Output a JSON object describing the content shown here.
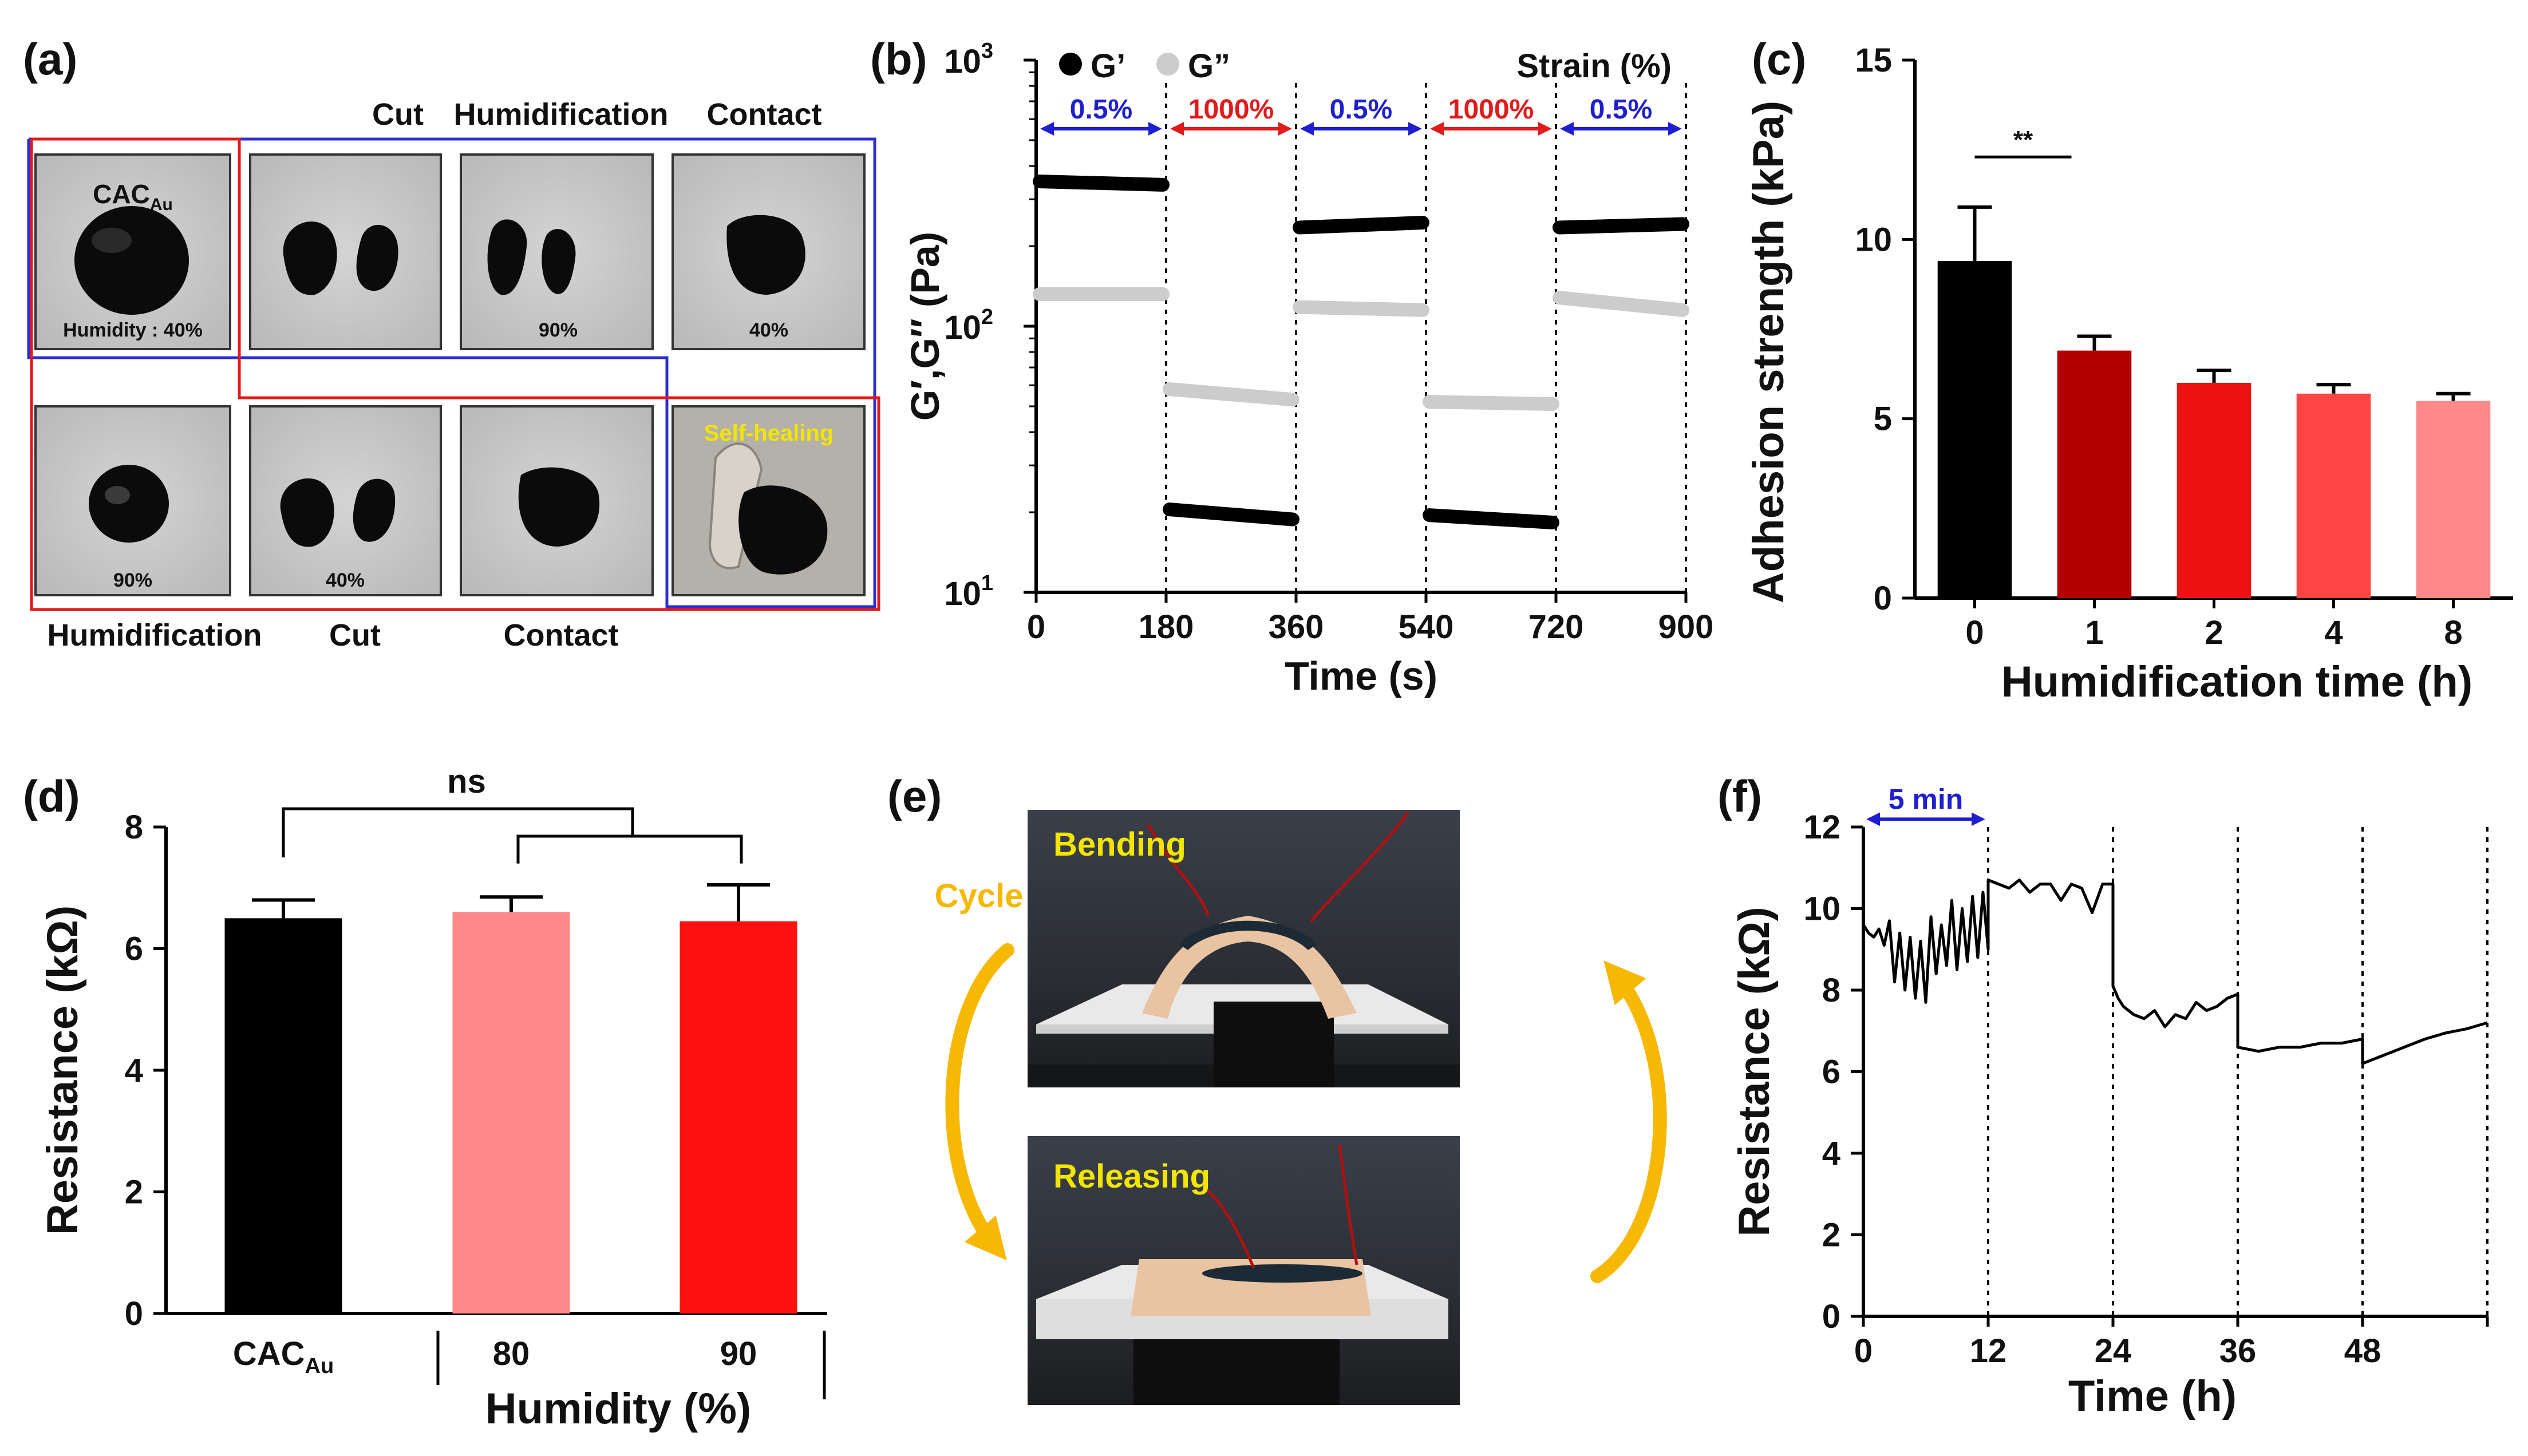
{
  "figure": {
    "panel_a": {
      "label": "(a)",
      "top_captions": [
        "Cut",
        "Humidification",
        "Contact"
      ],
      "bottom_captions": [
        "Humidification",
        "Cut",
        "Contact"
      ],
      "photos_top": [
        {
          "title": "CAC",
          "title_sub": "Au",
          "note": "Humidity : 40%"
        },
        {
          "note": ""
        },
        {
          "note": "90%"
        },
        {
          "note": "40%"
        }
      ],
      "photos_bottom": [
        {
          "note": "90%"
        },
        {
          "note": "40%"
        },
        {
          "note": ""
        },
        {
          "note": "Self-healing"
        }
      ],
      "colors": {
        "blue_box": "#2d2dd0",
        "red_box": "#e11b1b",
        "highlight": "#f2e600"
      }
    },
    "panel_e": {
      "label": "(e)",
      "cycle_label": "Cycle",
      "bending_label": "Bending",
      "releasing_label": "Releasing",
      "colors": {
        "arrow": "#f6b800",
        "text": "#f2e600"
      }
    }
  },
  "chart_data": [
    {
      "panel": "(b)",
      "type": "line",
      "xlabel": "Time (s)",
      "ylabel": "G′,G′′ (Pa)",
      "yscale": "log",
      "xlim": [
        0,
        900
      ],
      "ylim": [
        10,
        1000
      ],
      "xticks": [
        0,
        180,
        360,
        540,
        720,
        900
      ],
      "yticks": [
        10,
        100,
        1000
      ],
      "ytick_labels": [
        "10",
        "10",
        "10"
      ],
      "ytick_exps": [
        "1",
        "2",
        "3"
      ],
      "legend": [
        "G’",
        "G”"
      ],
      "legend_colors": [
        "#000000",
        "#cccccc"
      ],
      "strain_header": "Strain (%)",
      "strain_steps": [
        {
          "label": "0.5%",
          "start": 0,
          "end": 180,
          "color": "#1f1fd0"
        },
        {
          "label": "1000%",
          "start": 180,
          "end": 360,
          "color": "#e11b1b"
        },
        {
          "label": "0.5%",
          "start": 360,
          "end": 540,
          "color": "#1f1fd0"
        },
        {
          "label": "1000%",
          "start": 540,
          "end": 720,
          "color": "#e11b1b"
        },
        {
          "label": "0.5%",
          "start": 720,
          "end": 900,
          "color": "#1f1fd0"
        }
      ],
      "series": [
        {
          "name": "G’",
          "color": "#000000",
          "segments": [
            [
              350,
              340
            ],
            [
              20.5,
              18.8
            ],
            [
              235,
              245
            ],
            [
              19.5,
              18.3
            ],
            [
              235,
              242
            ]
          ]
        },
        {
          "name": "G”",
          "color": "#cccccc",
          "segments": [
            [
              132,
              132
            ],
            [
              58,
              53
            ],
            [
              118,
              115
            ],
            [
              52,
              51
            ],
            [
              128,
              115
            ]
          ]
        }
      ]
    },
    {
      "panel": "(c)",
      "type": "bar",
      "xlabel": "Humidification time (h)",
      "ylabel": "Adhesion strength (kPa)",
      "categories": [
        "0",
        "1",
        "2",
        "4",
        "8"
      ],
      "values": [
        9.4,
        6.9,
        6.0,
        5.7,
        5.5
      ],
      "errors": [
        1.5,
        0.4,
        0.35,
        0.25,
        0.2
      ],
      "colors": [
        "#000000",
        "#b30000",
        "#ee1111",
        "#ff4444",
        "#ff8888"
      ],
      "ylim": [
        0,
        15
      ],
      "yticks": [
        0,
        5,
        10,
        15
      ],
      "significance": "**"
    },
    {
      "panel": "(d)",
      "type": "bar",
      "xlabel": "Humidity (%)",
      "ylabel": "Resistance (kΩ)",
      "categories": [
        "CAC",
        "80",
        "90"
      ],
      "category_sub": [
        "Au",
        "",
        ""
      ],
      "values": [
        6.5,
        6.6,
        6.45
      ],
      "errors": [
        0.3,
        0.25,
        0.6
      ],
      "colors": [
        "#000000",
        "#ff8888",
        "#ff1111"
      ],
      "ylim": [
        0,
        8
      ],
      "yticks": [
        0,
        2,
        4,
        6,
        8
      ],
      "significance": "ns"
    },
    {
      "panel": "(f)",
      "type": "line",
      "xlabel": "Time (h)",
      "ylabel": "Resistance (kΩ)",
      "xlim": [
        0,
        60
      ],
      "ylim": [
        0,
        12
      ],
      "xticks": [
        0,
        12,
        24,
        36,
        48
      ],
      "yticks": [
        0,
        2,
        4,
        6,
        8,
        10,
        12
      ],
      "annotation": "5 min",
      "annotation_range": [
        0,
        12
      ],
      "dividers": [
        12,
        24,
        36,
        48,
        60
      ],
      "series": [
        {
          "name": "resistance",
          "color": "#000000",
          "x": [
            0.0,
            0.5,
            1.0,
            1.5,
            2.0,
            2.5,
            3.0,
            3.5,
            4.0,
            4.5,
            5.0,
            5.5,
            6.0,
            6.5,
            7.0,
            7.5,
            8.0,
            8.5,
            9.0,
            9.5,
            10.0,
            10.5,
            11.0,
            11.5,
            12.0,
            12.0,
            13.0,
            14.0,
            15.0,
            16.0,
            17.0,
            18.0,
            19.0,
            20.0,
            21.0,
            22.0,
            23.0,
            24.0,
            24.0,
            24.5,
            25.0,
            26.0,
            27.0,
            28.0,
            29.0,
            30.0,
            31.0,
            32.0,
            33.0,
            34.0,
            35.0,
            36.0,
            36.0,
            38.0,
            40.0,
            42.0,
            44.0,
            46.0,
            48.0,
            48.0,
            50.0,
            52.0,
            54.0,
            56.0,
            58.0,
            60.0
          ],
          "y": [
            9.6,
            9.4,
            9.3,
            9.5,
            9.1,
            9.7,
            8.2,
            9.4,
            8.0,
            9.3,
            7.8,
            9.2,
            7.7,
            9.8,
            8.4,
            9.6,
            8.6,
            10.2,
            8.5,
            10.0,
            8.7,
            10.3,
            8.8,
            10.4,
            9.0,
            10.7,
            10.6,
            10.5,
            10.7,
            10.4,
            10.6,
            10.6,
            10.2,
            10.6,
            10.5,
            9.9,
            10.6,
            10.6,
            8.1,
            7.8,
            7.6,
            7.4,
            7.3,
            7.5,
            7.1,
            7.4,
            7.3,
            7.7,
            7.5,
            7.6,
            7.8,
            7.9,
            6.6,
            6.5,
            6.6,
            6.6,
            6.7,
            6.7,
            6.8,
            6.2,
            6.4,
            6.6,
            6.8,
            6.95,
            7.05,
            7.2
          ]
        }
      ]
    }
  ]
}
